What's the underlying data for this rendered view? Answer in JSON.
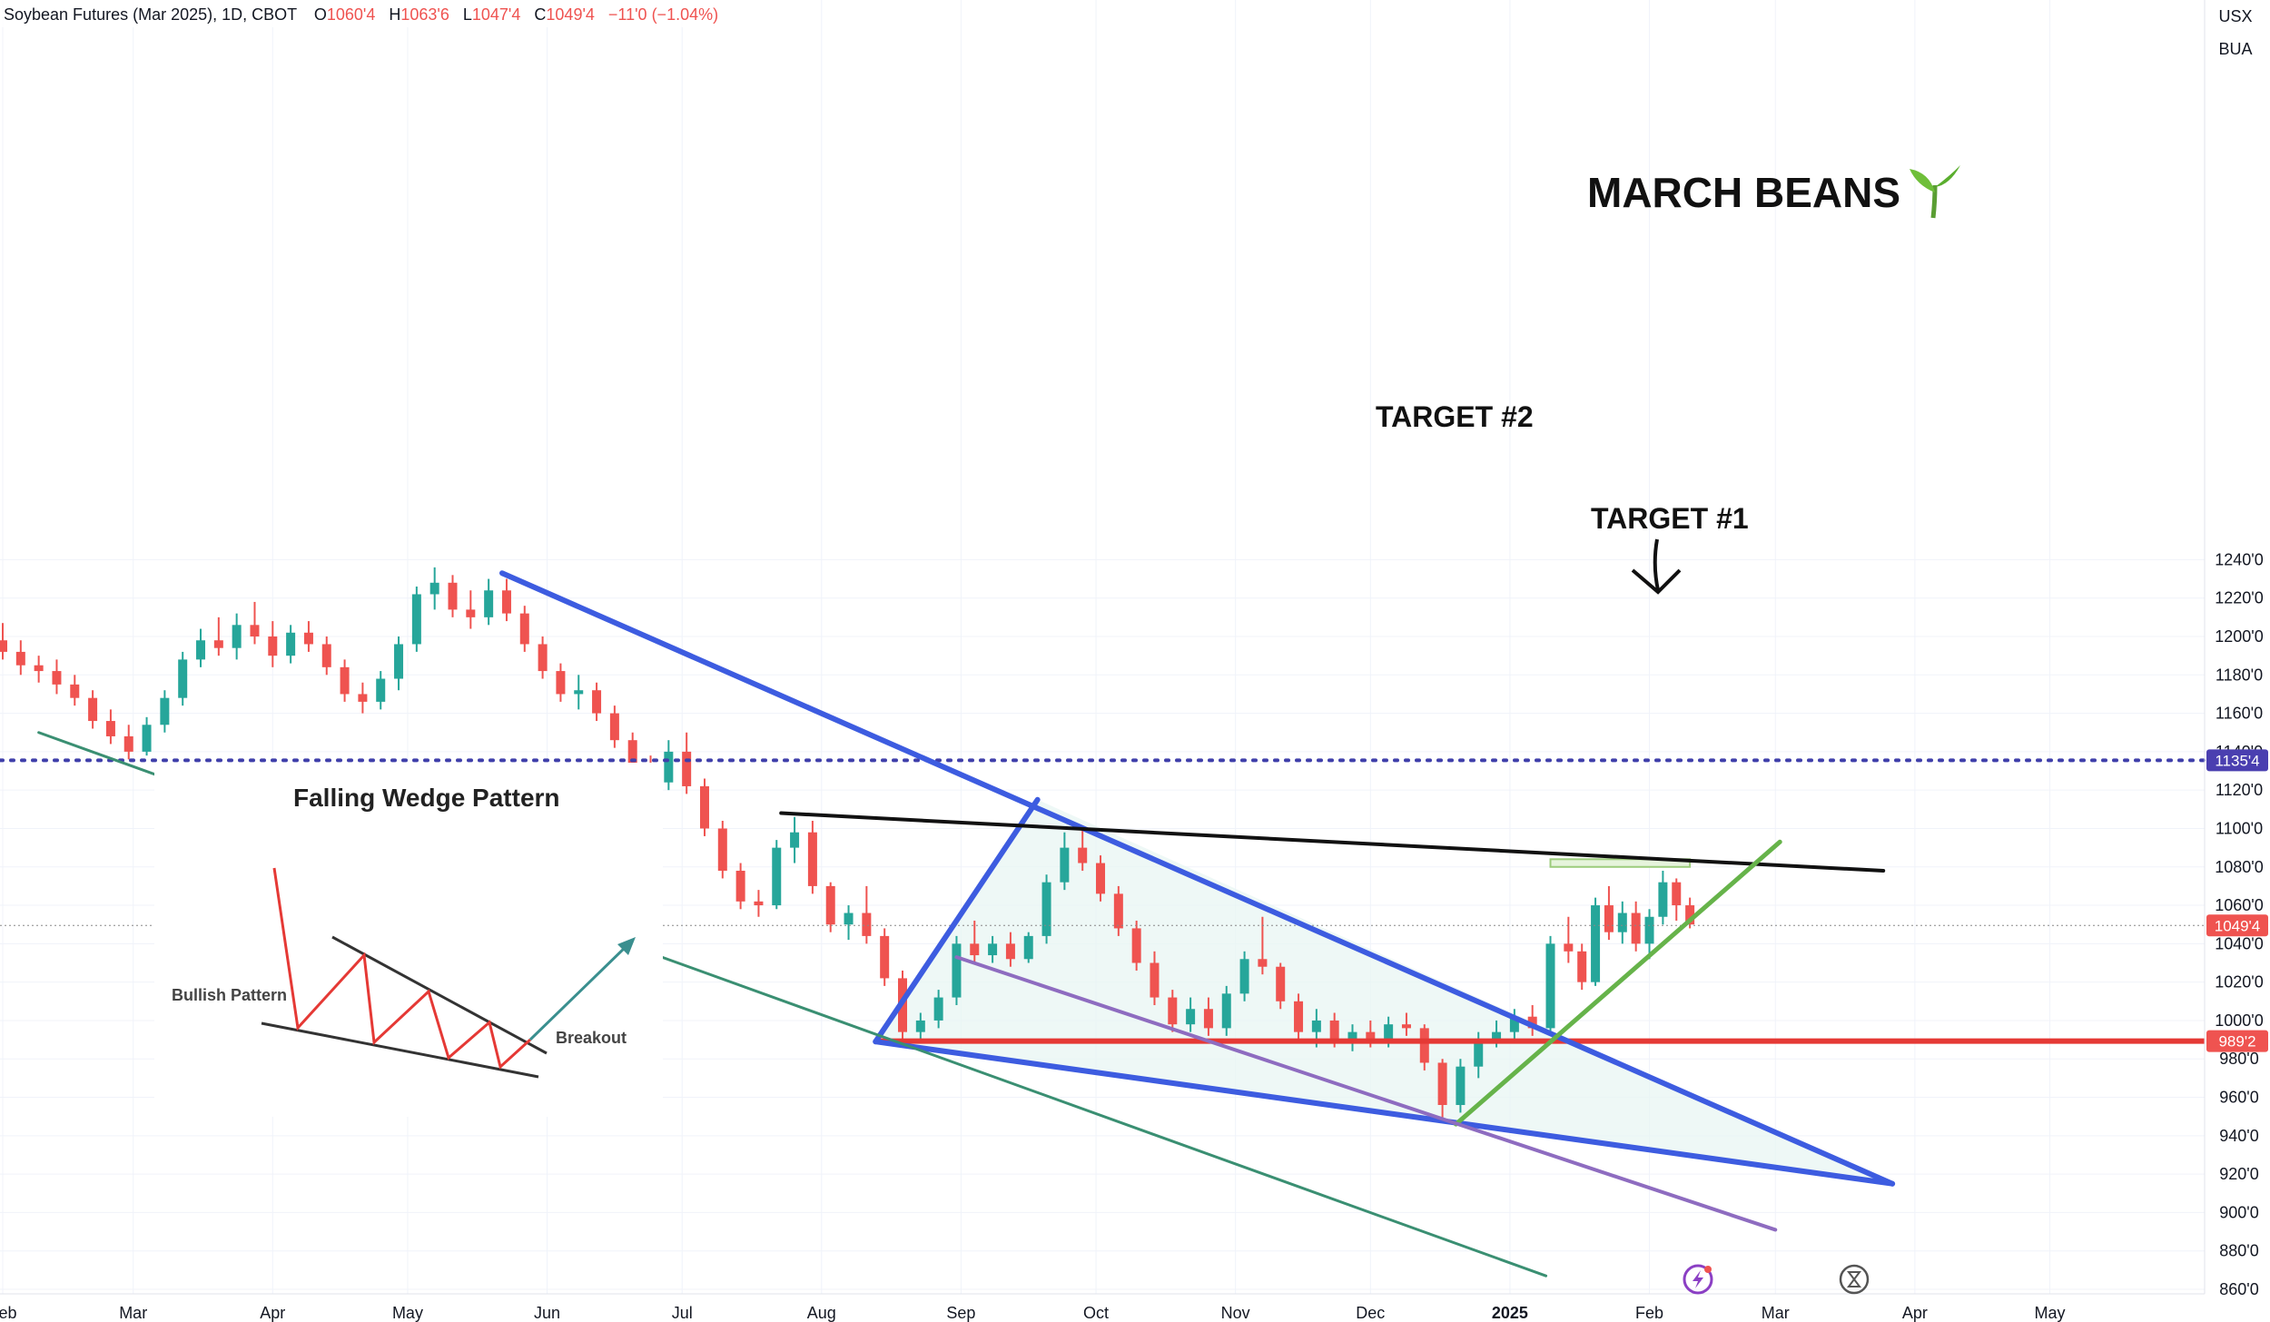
{
  "header": {
    "symbol": "Soybean Futures (Mar 2025), 1D, CBOT",
    "open_label": "O",
    "open": "1060'4",
    "high_label": "H",
    "high": "1063'6",
    "low_label": "L",
    "low": "1047'4",
    "close_label": "C",
    "close": "1049'4",
    "change": "−11'0 (−1.04%)"
  },
  "price_scale": {
    "currency": "USX",
    "unit": "BUA"
  },
  "annotations": {
    "title": "MARCH BEANS",
    "title_icon": "seedling-icon",
    "target2": "TARGET #2",
    "target1": "TARGET #1"
  },
  "inset": {
    "title": "Falling Wedge Pattern",
    "bullish_label": "Bullish Pattern",
    "breakout_label": "Breakout"
  },
  "colors": {
    "up": "#26a69a",
    "down": "#ef5350",
    "wedge": "#3d5ce0",
    "support": "#e53935",
    "target2": "#3f3faa",
    "resistance": "#111111",
    "uptrend": "#66b34a",
    "channel": "#3a8f72",
    "purple_line": "#8e6cc0"
  },
  "chart_data": {
    "type": "candlestick",
    "title": "MARCH BEANS",
    "y_axis": {
      "min": 860,
      "max": 1250,
      "ticks": [
        "1240'0",
        "1220'0",
        "1200'0",
        "1180'0",
        "1160'0",
        "1140'0",
        "1120'0",
        "1100'0",
        "1080'0",
        "1060'0",
        "1040'0",
        "1020'0",
        "1000'0",
        "980'0",
        "960'0",
        "940'0",
        "920'0",
        "900'0",
        "880'0",
        "860'0"
      ]
    },
    "x_axis": {
      "labels": [
        {
          "text": "Feb",
          "date": "2024-02-01"
        },
        {
          "text": "Mar",
          "date": "2024-03-01"
        },
        {
          "text": "Apr",
          "date": "2024-04-01"
        },
        {
          "text": "May",
          "date": "2024-05-01"
        },
        {
          "text": "Jun",
          "date": "2024-06-01"
        },
        {
          "text": "Jul",
          "date": "2024-07-01"
        },
        {
          "text": "Aug",
          "date": "2024-08-01"
        },
        {
          "text": "Sep",
          "date": "2024-09-01"
        },
        {
          "text": "Oct",
          "date": "2024-10-01"
        },
        {
          "text": "Nov",
          "date": "2024-11-01"
        },
        {
          "text": "Dec",
          "date": "2024-12-01"
        },
        {
          "text": "2025",
          "date": "2025-01-01"
        },
        {
          "text": "Feb",
          "date": "2025-02-01"
        },
        {
          "text": "Mar",
          "date": "2025-03-01"
        },
        {
          "text": "Apr",
          "date": "2025-04-01"
        },
        {
          "text": "May",
          "date": "2025-05-01"
        }
      ]
    },
    "price_labels": [
      {
        "value": 1135.5,
        "text": "1135'4",
        "color": "#4a3fb0"
      },
      {
        "value": 1049.5,
        "text": "1049'4",
        "color": "#ef5350"
      },
      {
        "value": 989.25,
        "text": "989'2",
        "color": "#ef5350"
      }
    ],
    "horizontal_lines": [
      {
        "name": "target-2-line",
        "value": 1135.5,
        "style": "dotted"
      },
      {
        "name": "current-price-line",
        "value": 1049.5,
        "style": "dotted-thin"
      },
      {
        "name": "support-line",
        "value": 989.25,
        "style": "solid",
        "start_date": "2024-08-13"
      }
    ],
    "trend_lines": [
      {
        "name": "wedge-upper-line",
        "from": [
          "2024-05-22",
          1233
        ],
        "to": [
          "2025-03-27",
          915
        ]
      },
      {
        "name": "wedge-lower-line",
        "from": [
          "2024-08-13",
          989
        ],
        "to": [
          "2025-03-27",
          915
        ]
      },
      {
        "name": "wedge-left-line",
        "from": [
          "2024-08-13",
          989
        ],
        "to": [
          "2024-09-18",
          1115
        ]
      },
      {
        "name": "resistance-line",
        "from": [
          "2024-07-23",
          1108
        ],
        "to": [
          "2025-03-25",
          1078
        ]
      },
      {
        "name": "uptrend-line",
        "from": [
          "2024-12-20",
          946
        ],
        "to": [
          "2025-03-02",
          1093
        ]
      },
      {
        "name": "channel-line",
        "from": [
          "2024-02-09",
          1150
        ],
        "to": [
          "2025-01-09",
          867
        ]
      },
      {
        "name": "purple-line",
        "from": [
          "2024-08-31",
          1033
        ],
        "to": [
          "2025-03-01",
          891
        ]
      }
    ],
    "target_zone": {
      "from": "2025-01-10",
      "to": "2025-02-10",
      "low": 1080,
      "high": 1084
    },
    "candles": [
      {
        "d": "2024-02-01",
        "o": 1198,
        "h": 1207,
        "l": 1188,
        "c": 1192
      },
      {
        "d": "2024-02-05",
        "o": 1192,
        "h": 1198,
        "l": 1180,
        "c": 1185
      },
      {
        "d": "2024-02-09",
        "o": 1185,
        "h": 1190,
        "l": 1176,
        "c": 1182
      },
      {
        "d": "2024-02-13",
        "o": 1182,
        "h": 1188,
        "l": 1170,
        "c": 1175
      },
      {
        "d": "2024-02-17",
        "o": 1175,
        "h": 1180,
        "l": 1164,
        "c": 1168
      },
      {
        "d": "2024-02-21",
        "o": 1168,
        "h": 1172,
        "l": 1152,
        "c": 1156
      },
      {
        "d": "2024-02-25",
        "o": 1156,
        "h": 1162,
        "l": 1144,
        "c": 1148
      },
      {
        "d": "2024-02-29",
        "o": 1148,
        "h": 1154,
        "l": 1136,
        "c": 1140
      },
      {
        "d": "2024-03-04",
        "o": 1140,
        "h": 1158,
        "l": 1138,
        "c": 1154
      },
      {
        "d": "2024-03-08",
        "o": 1154,
        "h": 1172,
        "l": 1150,
        "c": 1168
      },
      {
        "d": "2024-03-12",
        "o": 1168,
        "h": 1192,
        "l": 1164,
        "c": 1188
      },
      {
        "d": "2024-03-16",
        "o": 1188,
        "h": 1204,
        "l": 1184,
        "c": 1198
      },
      {
        "d": "2024-03-20",
        "o": 1198,
        "h": 1210,
        "l": 1190,
        "c": 1194
      },
      {
        "d": "2024-03-24",
        "o": 1194,
        "h": 1212,
        "l": 1188,
        "c": 1206
      },
      {
        "d": "2024-03-28",
        "o": 1206,
        "h": 1218,
        "l": 1196,
        "c": 1200
      },
      {
        "d": "2024-04-01",
        "o": 1200,
        "h": 1208,
        "l": 1184,
        "c": 1190
      },
      {
        "d": "2024-04-05",
        "o": 1190,
        "h": 1206,
        "l": 1186,
        "c": 1202
      },
      {
        "d": "2024-04-09",
        "o": 1202,
        "h": 1208,
        "l": 1192,
        "c": 1196
      },
      {
        "d": "2024-04-13",
        "o": 1196,
        "h": 1200,
        "l": 1180,
        "c": 1184
      },
      {
        "d": "2024-04-17",
        "o": 1184,
        "h": 1188,
        "l": 1166,
        "c": 1170
      },
      {
        "d": "2024-04-21",
        "o": 1170,
        "h": 1176,
        "l": 1160,
        "c": 1166
      },
      {
        "d": "2024-04-25",
        "o": 1166,
        "h": 1182,
        "l": 1162,
        "c": 1178
      },
      {
        "d": "2024-04-29",
        "o": 1178,
        "h": 1200,
        "l": 1172,
        "c": 1196
      },
      {
        "d": "2024-05-03",
        "o": 1196,
        "h": 1226,
        "l": 1192,
        "c": 1222
      },
      {
        "d": "2024-05-07",
        "o": 1222,
        "h": 1236,
        "l": 1214,
        "c": 1228
      },
      {
        "d": "2024-05-11",
        "o": 1228,
        "h": 1232,
        "l": 1210,
        "c": 1214
      },
      {
        "d": "2024-05-15",
        "o": 1214,
        "h": 1224,
        "l": 1204,
        "c": 1210
      },
      {
        "d": "2024-05-19",
        "o": 1210,
        "h": 1230,
        "l": 1206,
        "c": 1224
      },
      {
        "d": "2024-05-23",
        "o": 1224,
        "h": 1230,
        "l": 1208,
        "c": 1212
      },
      {
        "d": "2024-05-27",
        "o": 1212,
        "h": 1216,
        "l": 1192,
        "c": 1196
      },
      {
        "d": "2024-05-31",
        "o": 1196,
        "h": 1200,
        "l": 1178,
        "c": 1182
      },
      {
        "d": "2024-06-04",
        "o": 1182,
        "h": 1186,
        "l": 1166,
        "c": 1170
      },
      {
        "d": "2024-06-08",
        "o": 1170,
        "h": 1180,
        "l": 1162,
        "c": 1172
      },
      {
        "d": "2024-06-12",
        "o": 1172,
        "h": 1176,
        "l": 1156,
        "c": 1160
      },
      {
        "d": "2024-06-16",
        "o": 1160,
        "h": 1164,
        "l": 1142,
        "c": 1146
      },
      {
        "d": "2024-06-20",
        "o": 1146,
        "h": 1150,
        "l": 1128,
        "c": 1132
      },
      {
        "d": "2024-06-24",
        "o": 1132,
        "h": 1138,
        "l": 1118,
        "c": 1124
      },
      {
        "d": "2024-06-28",
        "o": 1124,
        "h": 1146,
        "l": 1120,
        "c": 1140
      },
      {
        "d": "2024-07-02",
        "o": 1140,
        "h": 1150,
        "l": 1118,
        "c": 1122
      },
      {
        "d": "2024-07-06",
        "o": 1122,
        "h": 1126,
        "l": 1096,
        "c": 1100
      },
      {
        "d": "2024-07-10",
        "o": 1100,
        "h": 1104,
        "l": 1074,
        "c": 1078
      },
      {
        "d": "2024-07-14",
        "o": 1078,
        "h": 1082,
        "l": 1058,
        "c": 1062
      },
      {
        "d": "2024-07-18",
        "o": 1062,
        "h": 1068,
        "l": 1054,
        "c": 1060
      },
      {
        "d": "2024-07-22",
        "o": 1060,
        "h": 1094,
        "l": 1058,
        "c": 1090
      },
      {
        "d": "2024-07-26",
        "o": 1090,
        "h": 1106,
        "l": 1082,
        "c": 1098
      },
      {
        "d": "2024-07-30",
        "o": 1098,
        "h": 1104,
        "l": 1066,
        "c": 1070
      },
      {
        "d": "2024-08-03",
        "o": 1070,
        "h": 1072,
        "l": 1046,
        "c": 1050
      },
      {
        "d": "2024-08-07",
        "o": 1050,
        "h": 1060,
        "l": 1042,
        "c": 1056
      },
      {
        "d": "2024-08-11",
        "o": 1056,
        "h": 1070,
        "l": 1040,
        "c": 1044
      },
      {
        "d": "2024-08-15",
        "o": 1044,
        "h": 1048,
        "l": 1018,
        "c": 1022
      },
      {
        "d": "2024-08-19",
        "o": 1022,
        "h": 1026,
        "l": 990,
        "c": 994
      },
      {
        "d": "2024-08-23",
        "o": 994,
        "h": 1004,
        "l": 990,
        "c": 1000
      },
      {
        "d": "2024-08-27",
        "o": 1000,
        "h": 1016,
        "l": 996,
        "c": 1012
      },
      {
        "d": "2024-08-31",
        "o": 1012,
        "h": 1044,
        "l": 1008,
        "c": 1040
      },
      {
        "d": "2024-09-04",
        "o": 1040,
        "h": 1052,
        "l": 1030,
        "c": 1034
      },
      {
        "d": "2024-09-08",
        "o": 1034,
        "h": 1044,
        "l": 1030,
        "c": 1040
      },
      {
        "d": "2024-09-12",
        "o": 1040,
        "h": 1046,
        "l": 1028,
        "c": 1032
      },
      {
        "d": "2024-09-16",
        "o": 1032,
        "h": 1046,
        "l": 1030,
        "c": 1044
      },
      {
        "d": "2024-09-20",
        "o": 1044,
        "h": 1076,
        "l": 1040,
        "c": 1072
      },
      {
        "d": "2024-09-24",
        "o": 1072,
        "h": 1098,
        "l": 1068,
        "c": 1090
      },
      {
        "d": "2024-09-28",
        "o": 1090,
        "h": 1100,
        "l": 1078,
        "c": 1082
      },
      {
        "d": "2024-10-02",
        "o": 1082,
        "h": 1086,
        "l": 1062,
        "c": 1066
      },
      {
        "d": "2024-10-06",
        "o": 1066,
        "h": 1070,
        "l": 1044,
        "c": 1048
      },
      {
        "d": "2024-10-10",
        "o": 1048,
        "h": 1052,
        "l": 1026,
        "c": 1030
      },
      {
        "d": "2024-10-14",
        "o": 1030,
        "h": 1036,
        "l": 1008,
        "c": 1012
      },
      {
        "d": "2024-10-18",
        "o": 1012,
        "h": 1016,
        "l": 994,
        "c": 998
      },
      {
        "d": "2024-10-22",
        "o": 998,
        "h": 1012,
        "l": 994,
        "c": 1006
      },
      {
        "d": "2024-10-26",
        "o": 1006,
        "h": 1012,
        "l": 992,
        "c": 996
      },
      {
        "d": "2024-10-30",
        "o": 996,
        "h": 1018,
        "l": 992,
        "c": 1014
      },
      {
        "d": "2024-11-03",
        "o": 1014,
        "h": 1036,
        "l": 1010,
        "c": 1032
      },
      {
        "d": "2024-11-07",
        "o": 1032,
        "h": 1054,
        "l": 1024,
        "c": 1028
      },
      {
        "d": "2024-11-11",
        "o": 1028,
        "h": 1030,
        "l": 1006,
        "c": 1010
      },
      {
        "d": "2024-11-15",
        "o": 1010,
        "h": 1014,
        "l": 990,
        "c": 994
      },
      {
        "d": "2024-11-19",
        "o": 994,
        "h": 1006,
        "l": 986,
        "c": 1000
      },
      {
        "d": "2024-11-23",
        "o": 1000,
        "h": 1004,
        "l": 986,
        "c": 990
      },
      {
        "d": "2024-11-27",
        "o": 990,
        "h": 998,
        "l": 984,
        "c": 994
      },
      {
        "d": "2024-12-01",
        "o": 994,
        "h": 1000,
        "l": 986,
        "c": 990
      },
      {
        "d": "2024-12-05",
        "o": 990,
        "h": 1002,
        "l": 986,
        "c": 998
      },
      {
        "d": "2024-12-09",
        "o": 998,
        "h": 1004,
        "l": 992,
        "c": 996
      },
      {
        "d": "2024-12-13",
        "o": 996,
        "h": 998,
        "l": 974,
        "c": 978
      },
      {
        "d": "2024-12-17",
        "o": 978,
        "h": 980,
        "l": 948,
        "c": 956
      },
      {
        "d": "2024-12-21",
        "o": 956,
        "h": 980,
        "l": 952,
        "c": 976
      },
      {
        "d": "2024-12-25",
        "o": 976,
        "h": 994,
        "l": 970,
        "c": 990
      },
      {
        "d": "2024-12-29",
        "o": 990,
        "h": 1000,
        "l": 986,
        "c": 994
      },
      {
        "d": "2025-01-02",
        "o": 994,
        "h": 1006,
        "l": 988,
        "c": 1002
      },
      {
        "d": "2025-01-06",
        "o": 1002,
        "h": 1008,
        "l": 992,
        "c": 996
      },
      {
        "d": "2025-01-10",
        "o": 996,
        "h": 1044,
        "l": 994,
        "c": 1040
      },
      {
        "d": "2025-01-14",
        "o": 1040,
        "h": 1054,
        "l": 1030,
        "c": 1036
      },
      {
        "d": "2025-01-17",
        "o": 1036,
        "h": 1040,
        "l": 1016,
        "c": 1020
      },
      {
        "d": "2025-01-20",
        "o": 1020,
        "h": 1064,
        "l": 1018,
        "c": 1060
      },
      {
        "d": "2025-01-23",
        "o": 1060,
        "h": 1070,
        "l": 1042,
        "c": 1046
      },
      {
        "d": "2025-01-26",
        "o": 1046,
        "h": 1062,
        "l": 1040,
        "c": 1056
      },
      {
        "d": "2025-01-29",
        "o": 1056,
        "h": 1062,
        "l": 1036,
        "c": 1040
      },
      {
        "d": "2025-02-01",
        "o": 1040,
        "h": 1058,
        "l": 1032,
        "c": 1054
      },
      {
        "d": "2025-02-04",
        "o": 1054,
        "h": 1078,
        "l": 1050,
        "c": 1072
      },
      {
        "d": "2025-02-07",
        "o": 1072,
        "h": 1074,
        "l": 1052,
        "c": 1060
      },
      {
        "d": "2025-02-10",
        "o": 1060,
        "h": 1064,
        "l": 1048,
        "c": 1050
      }
    ]
  }
}
